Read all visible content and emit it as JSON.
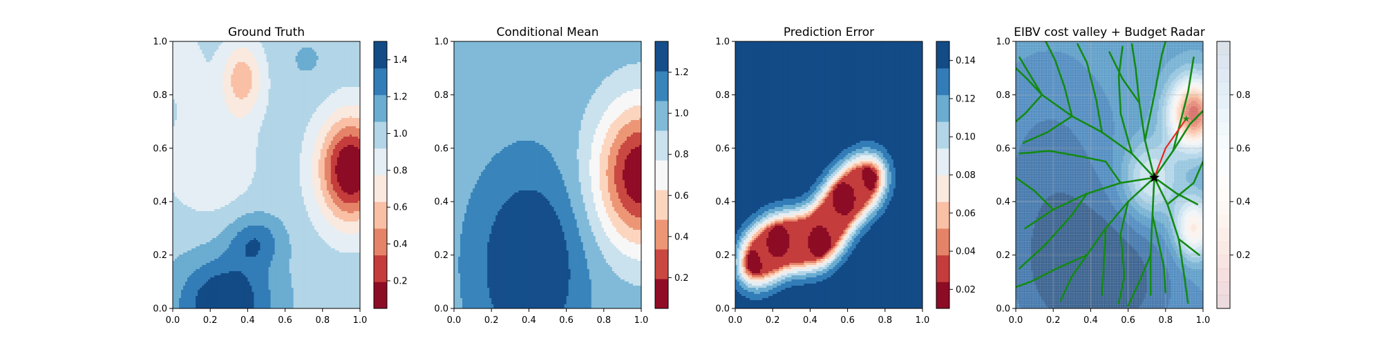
{
  "chart_data": [
    {
      "type": "heatmap",
      "title": "Ground Truth",
      "xlabel": "",
      "ylabel": "",
      "xlim": [
        0,
        1
      ],
      "ylim": [
        0,
        1
      ],
      "x_ticks": [
        "0.0",
        "0.2",
        "0.4",
        "0.6",
        "0.8",
        "1.0"
      ],
      "y_ticks": [
        "0.0",
        "0.2",
        "0.4",
        "0.6",
        "0.8",
        "1.0"
      ],
      "colormap": "RdBu",
      "colorbar": {
        "range": [
          0.05,
          1.5
        ],
        "levels": 10,
        "ticks": [
          "0.2",
          "0.4",
          "0.6",
          "0.8",
          "1.0",
          "1.2",
          "1.4"
        ],
        "tick_values": [
          0.2,
          0.4,
          0.6,
          0.8,
          1.0,
          1.2,
          1.4
        ]
      },
      "field": {
        "base": 1.0,
        "components": [
          {
            "x": 0.95,
            "y": 0.52,
            "amp": -1.0,
            "sx": 0.12,
            "sy": 0.14
          },
          {
            "x": 0.37,
            "y": 0.86,
            "amp": -0.45,
            "sx": 0.08,
            "sy": 0.1
          },
          {
            "x": 0.28,
            "y": 0.02,
            "amp": 0.52,
            "sx": 0.18,
            "sy": 0.12
          },
          {
            "x": 0.44,
            "y": 0.25,
            "amp": 0.32,
            "sx": 0.1,
            "sy": 0.07
          },
          {
            "x": 0.2,
            "y": 0.55,
            "amp": -0.22,
            "sx": 0.17,
            "sy": 0.14
          },
          {
            "x": 0.05,
            "y": 0.92,
            "amp": -0.15,
            "sx": 0.09,
            "sy": 0.1
          },
          {
            "x": 0.72,
            "y": 0.93,
            "amp": 0.08,
            "sx": 0.1,
            "sy": 0.08
          }
        ]
      }
    },
    {
      "type": "heatmap",
      "title": "Conditional Mean",
      "xlabel": "",
      "ylabel": "",
      "xlim": [
        0,
        1
      ],
      "ylim": [
        0,
        1
      ],
      "x_ticks": [
        "0.0",
        "0.2",
        "0.4",
        "0.6",
        "0.8",
        "1.0"
      ],
      "y_ticks": [
        "0.0",
        "0.2",
        "0.4",
        "0.6",
        "0.8",
        "1.0"
      ],
      "colormap": "RdBu",
      "colorbar": {
        "range": [
          0.05,
          1.35
        ],
        "levels": 9,
        "ticks": [
          "0.2",
          "0.4",
          "0.6",
          "0.8",
          "1.0",
          "1.2"
        ],
        "tick_values": [
          0.2,
          0.4,
          0.6,
          0.8,
          1.0,
          1.2
        ]
      },
      "field": {
        "base": 1.0,
        "components": [
          {
            "x": 1.0,
            "y": 0.5,
            "amp": -0.95,
            "sx": 0.17,
            "sy": 0.19
          },
          {
            "x": 0.4,
            "y": 0.16,
            "amp": 0.42,
            "sx": 0.19,
            "sy": 0.24
          }
        ]
      }
    },
    {
      "type": "heatmap",
      "title": "Prediction Error",
      "xlabel": "",
      "ylabel": "",
      "xlim": [
        0,
        1
      ],
      "ylim": [
        0,
        1
      ],
      "x_ticks": [
        "0.0",
        "0.2",
        "0.4",
        "0.6",
        "0.8",
        "1.0"
      ],
      "y_ticks": [
        "0.0",
        "0.2",
        "0.4",
        "0.6",
        "0.8",
        "1.0"
      ],
      "colormap": "RdBu",
      "colorbar": {
        "range": [
          0.01,
          0.15
        ],
        "levels": 10,
        "ticks": [
          "0.02",
          "0.04",
          "0.06",
          "0.08",
          "0.10",
          "0.12",
          "0.14"
        ],
        "tick_values": [
          0.02,
          0.04,
          0.06,
          0.08,
          0.1,
          0.12,
          0.14
        ]
      },
      "field": {
        "base": 0.15,
        "samples": [
          {
            "x": 0.08,
            "y": 0.16
          },
          {
            "x": 0.23,
            "y": 0.25
          },
          {
            "x": 0.45,
            "y": 0.25
          },
          {
            "x": 0.58,
            "y": 0.41
          },
          {
            "x": 0.74,
            "y": 0.5
          }
        ],
        "sample_spacing": 0.02,
        "sample_amp": -0.023,
        "sample_sigma": 0.07
      }
    },
    {
      "type": "heatmap",
      "title": "EIBV cost valley + Budget Radar",
      "xlabel": "",
      "ylabel": "",
      "xlim": [
        0,
        1
      ],
      "ylim": [
        0,
        1
      ],
      "x_ticks": [
        "0.0",
        "0.2",
        "0.4",
        "0.6",
        "0.8",
        "1.0"
      ],
      "y_ticks": [
        "0.0",
        "0.2",
        "0.4",
        "0.6",
        "0.8",
        "1.0"
      ],
      "colormap": "RdBu",
      "colorbar": {
        "range": [
          0,
          1
        ],
        "levels": 20,
        "ticks": [
          "0.2",
          "0.4",
          "0.6",
          "0.8"
        ],
        "tick_values": [
          0.2,
          0.4,
          0.6,
          0.8
        ],
        "alpha": 0.15
      },
      "field": {
        "base": 0.82,
        "components": [
          {
            "x": 0.95,
            "y": 0.73,
            "amp": -0.65,
            "sx": 0.09,
            "sy": 0.09
          },
          {
            "x": 0.95,
            "y": 0.3,
            "amp": -0.4,
            "sx": 0.07,
            "sy": 0.08
          },
          {
            "x": 0.72,
            "y": 0.48,
            "amp": -0.25,
            "sx": 0.1,
            "sy": 0.1
          },
          {
            "x": 0.45,
            "y": 0.1,
            "amp": 0.18,
            "sx": 0.3,
            "sy": 0.2
          },
          {
            "x": 0.18,
            "y": 0.5,
            "amp": 0.1,
            "sx": 0.25,
            "sy": 0.3
          }
        ],
        "alpha": 0.65,
        "grid_cells": 110
      },
      "tree": {
        "root": {
          "x": 0.74,
          "y": 0.49
        },
        "color": "#138a13",
        "branches": [
          [
            [
              0.74,
              0.49
            ],
            [
              0.62,
              0.58
            ],
            [
              0.46,
              0.66
            ],
            [
              0.3,
              0.72
            ],
            [
              0.14,
              0.8
            ],
            [
              0.02,
              0.94
            ]
          ],
          [
            [
              0.3,
              0.72
            ],
            [
              0.26,
              0.83
            ],
            [
              0.21,
              0.93
            ],
            [
              0.16,
              1.0
            ]
          ],
          [
            [
              0.46,
              0.66
            ],
            [
              0.43,
              0.78
            ],
            [
              0.38,
              0.92
            ],
            [
              0.33,
              0.99
            ]
          ],
          [
            [
              0.14,
              0.8
            ],
            [
              0.06,
              0.86
            ],
            [
              0.0,
              0.9
            ]
          ],
          [
            [
              0.3,
              0.72
            ],
            [
              0.17,
              0.66
            ],
            [
              0.04,
              0.62
            ]
          ],
          [
            [
              0.74,
              0.49
            ],
            [
              0.69,
              0.63
            ],
            [
              0.66,
              0.77
            ],
            [
              0.64,
              0.9
            ],
            [
              0.62,
              0.99
            ]
          ],
          [
            [
              0.66,
              0.77
            ],
            [
              0.57,
              0.86
            ],
            [
              0.5,
              0.96
            ]
          ],
          [
            [
              0.69,
              0.63
            ],
            [
              0.74,
              0.8
            ],
            [
              0.78,
              0.95
            ],
            [
              0.8,
              1.0
            ]
          ],
          [
            [
              0.74,
              0.49
            ],
            [
              0.84,
              0.59
            ],
            [
              0.93,
              0.69
            ],
            [
              1.0,
              0.74
            ]
          ],
          [
            [
              0.74,
              0.49
            ],
            [
              0.86,
              0.43
            ],
            [
              0.97,
              0.39
            ]
          ],
          [
            [
              0.74,
              0.49
            ],
            [
              0.81,
              0.39
            ],
            [
              0.87,
              0.26
            ],
            [
              0.9,
              0.12
            ],
            [
              0.92,
              0.02
            ]
          ],
          [
            [
              0.74,
              0.49
            ],
            [
              0.73,
              0.35
            ],
            [
              0.72,
              0.2
            ],
            [
              0.72,
              0.05
            ]
          ],
          [
            [
              0.72,
              0.2
            ],
            [
              0.66,
              0.1
            ],
            [
              0.6,
              0.01
            ]
          ],
          [
            [
              0.74,
              0.49
            ],
            [
              0.6,
              0.4
            ],
            [
              0.48,
              0.3
            ],
            [
              0.38,
              0.2
            ],
            [
              0.3,
              0.12
            ],
            [
              0.24,
              0.03
            ]
          ],
          [
            [
              0.48,
              0.3
            ],
            [
              0.47,
              0.16
            ],
            [
              0.46,
              0.05
            ]
          ],
          [
            [
              0.38,
              0.2
            ],
            [
              0.22,
              0.15
            ],
            [
              0.08,
              0.1
            ],
            [
              0.0,
              0.08
            ]
          ],
          [
            [
              0.74,
              0.49
            ],
            [
              0.56,
              0.47
            ],
            [
              0.38,
              0.43
            ],
            [
              0.2,
              0.37
            ],
            [
              0.05,
              0.3
            ]
          ],
          [
            [
              0.38,
              0.43
            ],
            [
              0.3,
              0.35
            ],
            [
              0.16,
              0.24
            ],
            [
              0.02,
              0.15
            ]
          ],
          [
            [
              0.2,
              0.37
            ],
            [
              0.1,
              0.44
            ],
            [
              0.0,
              0.49
            ]
          ],
          [
            [
              0.56,
              0.47
            ],
            [
              0.48,
              0.55
            ],
            [
              0.34,
              0.57
            ],
            [
              0.18,
              0.59
            ],
            [
              0.02,
              0.58
            ]
          ],
          [
            [
              0.62,
              0.58
            ],
            [
              0.56,
              0.73
            ],
            [
              0.55,
              0.87
            ],
            [
              0.57,
              0.98
            ]
          ],
          [
            [
              0.84,
              0.59
            ],
            [
              0.92,
              0.81
            ],
            [
              0.95,
              0.94
            ]
          ],
          [
            [
              0.81,
              0.39
            ],
            [
              0.95,
              0.47
            ],
            [
              1.0,
              0.55
            ]
          ],
          [
            [
              0.87,
              0.26
            ],
            [
              0.98,
              0.2
            ]
          ],
          [
            [
              0.6,
              0.4
            ],
            [
              0.56,
              0.28
            ],
            [
              0.58,
              0.12
            ],
            [
              0.55,
              0.02
            ]
          ],
          [
            [
              0.14,
              0.8
            ],
            [
              0.05,
              0.73
            ],
            [
              0.0,
              0.7
            ]
          ],
          [
            [
              0.73,
              0.35
            ],
            [
              0.79,
              0.16
            ],
            [
              0.8,
              0.06
            ]
          ]
        ],
        "path": {
          "color": "#e8281e",
          "points": [
            [
              0.74,
              0.49
            ],
            [
              0.8,
              0.6
            ],
            [
              0.91,
              0.71
            ]
          ]
        },
        "current_marker": {
          "x": 0.74,
          "y": 0.49,
          "color": "#000000"
        },
        "target_marker": {
          "x": 0.91,
          "y": 0.71,
          "color": "#138a13"
        }
      }
    }
  ]
}
